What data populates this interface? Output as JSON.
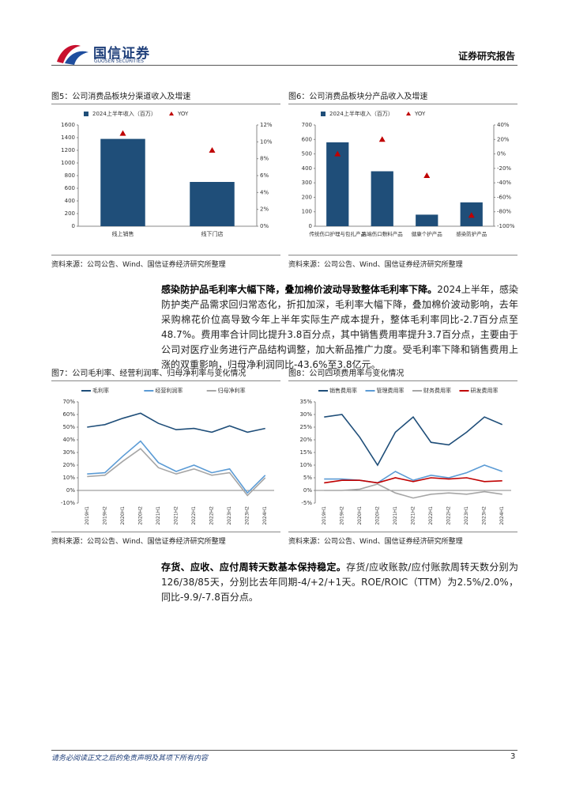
{
  "header": {
    "brand": "国信证券",
    "brand_en": "GUOSEN SECURITIES",
    "report_type": "证券研究报告"
  },
  "figures": [
    {
      "title": "图5：公司消费品板块分渠道收入及增速",
      "source": "资料来源：公司公告、Wind、国信证券经济研究所整理",
      "chart": {
        "type": "bar",
        "categories": [
          "线上销售",
          "线下门店"
        ],
        "series": [
          {
            "name": "2024上半年收入（百万）",
            "color": "#1f4e79",
            "values": [
              1380,
              700
            ]
          },
          {
            "name": "YOY",
            "color": "#c00000",
            "axis": "y2",
            "marker": "triangle",
            "values": [
              11,
              9
            ]
          }
        ],
        "ylim": [
          0,
          1600
        ],
        "yticks": [
          0,
          200,
          400,
          600,
          800,
          1000,
          1200,
          1400,
          1600
        ],
        "y2lim": [
          0,
          12
        ],
        "y2ticks": [
          {
            "value": 0,
            "label": "0%"
          },
          {
            "value": 2,
            "label": "2%"
          },
          {
            "value": 4,
            "label": "4%"
          },
          {
            "value": 6,
            "label": "6%"
          },
          {
            "value": 8,
            "label": "8%"
          },
          {
            "value": 10,
            "label": "10%"
          },
          {
            "value": 12,
            "label": "12%"
          }
        ],
        "grid": false
      }
    },
    {
      "title": "图6：公司消费品板块分产品收入及增速",
      "source": "资料来源：公司公告、Wind、国信证券经济研究所整理",
      "chart": {
        "type": "bar",
        "categories": [
          "传统伤口护理与包扎产品",
          "高端伤口敷料产品",
          "健康个护产品",
          "感染防护产品"
        ],
        "series": [
          {
            "name": "2024上半年收入（百万）",
            "color": "#1f4e79",
            "values": [
              580,
              380,
              80,
              165
            ]
          },
          {
            "name": "YOY",
            "color": "#c00000",
            "axis": "y2",
            "marker": "triangle",
            "values": [
              0,
              20,
              -30,
              -85
            ]
          }
        ],
        "ylim": [
          0,
          700
        ],
        "yticks": [
          0,
          100,
          200,
          300,
          400,
          500,
          600,
          700
        ],
        "y2lim": [
          -100,
          40
        ],
        "y2ticks": [
          {
            "value": -100,
            "label": "-100%"
          },
          {
            "value": -80,
            "label": "-80%"
          },
          {
            "value": -60,
            "label": "-60%"
          },
          {
            "value": -40,
            "label": "-40%"
          },
          {
            "value": -20,
            "label": "-20%"
          },
          {
            "value": 0,
            "label": "0%"
          },
          {
            "value": 20,
            "label": "20%"
          },
          {
            "value": 40,
            "label": "40%"
          }
        ],
        "grid": false
      }
    },
    {
      "title": "图7：公司毛利率、经营利润率、归母净利率与变化情况",
      "source": "资料来源：公司公告、Wind、国信证券经济研究所整理",
      "chart": {
        "type": "line",
        "categories": [
          "2019H1",
          "2019H2",
          "2020H1",
          "2020H2",
          "2021H1",
          "2021H2",
          "2022H1",
          "2022H2",
          "2023H1",
          "2023H2",
          "2024H1"
        ],
        "series": [
          {
            "name": "毛利率",
            "color": "#1f4e79",
            "values": [
              50,
              52,
              57,
              61,
              53,
              48,
              49,
              46,
              51,
              46,
              49
            ]
          },
          {
            "name": "经营利润率",
            "color": "#5b9bd5",
            "values": [
              13,
              14,
              27,
              39,
              22,
              15,
              20,
              14,
              17,
              -2,
              12
            ]
          },
          {
            "name": "归母净利率",
            "color": "#a6a6a6",
            "values": [
              11,
              12,
              23,
              33,
              18,
              13,
              17,
              12,
              14,
              -4,
              10
            ]
          }
        ],
        "ylim": [
          -10,
          70
        ],
        "yticks": [
          {
            "value": -10,
            "label": "-10%"
          },
          {
            "value": 0,
            "label": "0%"
          },
          {
            "value": 10,
            "label": "10%"
          },
          {
            "value": 20,
            "label": "20%"
          },
          {
            "value": 30,
            "label": "30%"
          },
          {
            "value": 40,
            "label": "40%"
          },
          {
            "value": 50,
            "label": "50%"
          },
          {
            "value": 60,
            "label": "60%"
          },
          {
            "value": 70,
            "label": "70%"
          }
        ],
        "grid": false
      }
    },
    {
      "title": "图8：公司四项费用率与变化情况",
      "source": "资料来源：公司公告、Wind、国信证券经济研究所整理",
      "chart": {
        "type": "line",
        "categories": [
          "2019H1",
          "2019H2",
          "2020H1",
          "2020H2",
          "2021H1",
          "2021H2",
          "2022H1",
          "2022H2",
          "2023H1",
          "2023H2",
          "2024H1"
        ],
        "series": [
          {
            "name": "销售费用率",
            "color": "#1f4e79",
            "values": [
              29,
              30,
              21,
              10,
              23,
              29,
              19,
              18,
              23,
              29,
              26
            ]
          },
          {
            "name": "管理费用率",
            "color": "#5b9bd5",
            "values": [
              4.5,
              4.5,
              4,
              3,
              7.5,
              4,
              6,
              5,
              7,
              10,
              7.5
            ]
          },
          {
            "name": "财务费用率",
            "color": "#a6a6a6",
            "values": [
              0,
              0,
              0.5,
              2.5,
              -1,
              -3,
              -1.5,
              -1,
              -1.5,
              -0.5,
              -1.5
            ]
          },
          {
            "name": "研发费用率",
            "color": "#c00000",
            "values": [
              3,
              4,
              4,
              3,
              5,
              3.5,
              5,
              4.5,
              5,
              3.5,
              3.8
            ]
          }
        ],
        "ylim": [
          -5,
          35
        ],
        "yticks": [
          {
            "value": -5,
            "label": "-5%"
          },
          {
            "value": 0,
            "label": "0%"
          },
          {
            "value": 5,
            "label": "5%"
          },
          {
            "value": 10,
            "label": "10%"
          },
          {
            "value": 15,
            "label": "15%"
          },
          {
            "value": 20,
            "label": "20%"
          },
          {
            "value": 25,
            "label": "25%"
          },
          {
            "value": 30,
            "label": "30%"
          },
          {
            "value": 35,
            "label": "35%"
          }
        ],
        "grid": false
      }
    }
  ],
  "paragraphs": [
    {
      "lead": "感染防护品毛利率大幅下降，叠加棉价波动导致整体毛利率下降。",
      "body": "2024上半年，感染防护类产品需求回归常态化，折扣加深，毛利率大幅下降，叠加棉价波动影响，去年采购棉花价位高导致今年上半年实际生产成本提升，整体毛利率同比-2.7百分点至48.7%。费用率合计同比提升3.8百分点，其中销售费用率提升3.7百分点，主要由于公司对医疗业务进行产品结构调整，加大新品推广力度。受毛利率下降和销售费用上涨的双重影响，归母净利润同比-43.6%至3.8亿元。"
    },
    {
      "lead": "存货、应收、应付周转天数基本保持稳定。",
      "body": "存货/应收账款/应付账款周转天数分别为126/38/85天，分别比去年同期-4/+2/+1天。ROE/ROIC（TTM）为2.5%/2.0%，同比-9.9/-7.8百分点。"
    }
  ],
  "footer": {
    "disclaimer": "请务必阅读正文之后的免责声明及其项下所有内容",
    "page": "3"
  }
}
